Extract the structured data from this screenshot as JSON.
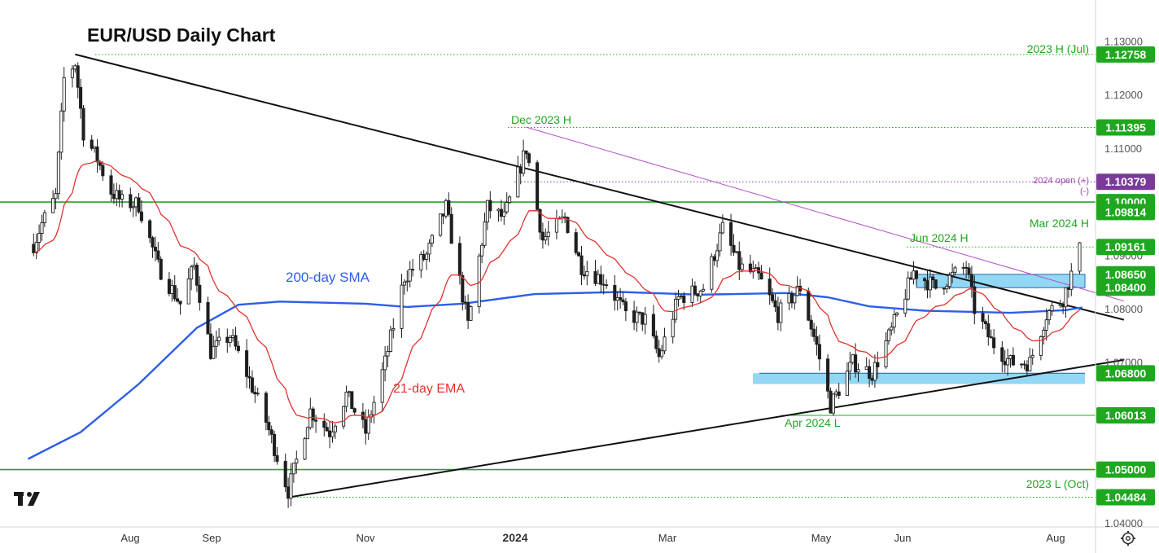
{
  "chart_data": {
    "type": "candlestick",
    "title": "EUR/USD Daily Chart",
    "ylim": [
      1.0395,
      1.1335
    ],
    "y_ticks": [
      "1.13000",
      "1.12000",
      "1.11000",
      "1.09000",
      "1.08000",
      "1.07000",
      "1.04000"
    ],
    "x_ticks": [
      "Aug",
      "Sep",
      "Nov",
      "2024",
      "Mar",
      "May",
      "Jun",
      "Aug"
    ],
    "price_levels": [
      {
        "value": 1.12758,
        "label": "1.12758",
        "color": "#1fa81f"
      },
      {
        "value": 1.11395,
        "label": "1.11395",
        "color": "#1fa81f"
      },
      {
        "value": 1.10379,
        "label": "1.10379",
        "color": "#7b3a99"
      },
      {
        "value": 1.1,
        "label": "1.10000",
        "color": "#1fa81f"
      },
      {
        "value": 1.09814,
        "label": "1.09814",
        "color": "#1fa81f"
      },
      {
        "value": 1.09161,
        "label": "1.09161",
        "color": "#1fa81f"
      },
      {
        "value": 1.0865,
        "label": "1.08650",
        "color": "#1fa81f"
      },
      {
        "value": 1.084,
        "label": "1.08400",
        "color": "#1fa81f"
      },
      {
        "value": 1.068,
        "label": "1.06800",
        "color": "#1fa81f"
      },
      {
        "value": 1.06013,
        "label": "1.06013",
        "color": "#1fa81f"
      },
      {
        "value": 1.05,
        "label": "1.05000",
        "color": "#1fa81f"
      },
      {
        "value": 1.04484,
        "label": "1.04484",
        "color": "#1fa81f"
      }
    ],
    "annotations": [
      {
        "text": "2023 H (Jul)",
        "color": "#1fa81f"
      },
      {
        "text": "Dec 2023 H",
        "color": "#1fa81f"
      },
      {
        "text": "2024 open (+)",
        "color": "#a347b5"
      },
      {
        "text": "(-)",
        "color": "#a347b5"
      },
      {
        "text": "Mar 2024 H",
        "color": "#1fa81f"
      },
      {
        "text": "Jun 2024 H",
        "color": "#1fa81f"
      },
      {
        "text": "Apr 2024 L",
        "color": "#1fa81f"
      },
      {
        "text": "2023 L (Oct)",
        "color": "#1fa81f"
      }
    ],
    "indicators": [
      {
        "name": "200-day SMA",
        "color": "#2d5ee8"
      },
      {
        "name": "21-day EMA",
        "color": "#e0322e"
      }
    ],
    "zones": [
      {
        "from": 1.084,
        "to": 1.0865,
        "color": "#7fd0f2"
      },
      {
        "from": 1.066,
        "to": 1.068,
        "color": "#7fd0f2"
      }
    ],
    "horizontal_lines": [
      1.1,
      1.05
    ],
    "trendlines": [
      {
        "name": "descending-trendline",
        "from": [
          "2023-07-18",
          1.1276
        ],
        "to": [
          "2024-07-31",
          1.078
        ]
      },
      {
        "name": "ascending-trendline",
        "from": [
          "2023-10-03",
          1.0448
        ],
        "to": [
          "2024-07-31",
          1.0705
        ]
      },
      {
        "name": "dec-high-trendline",
        "from": [
          "2023-12-28",
          1.114
        ],
        "to": [
          "2024-07-31",
          1.0815
        ]
      }
    ],
    "colors": {
      "up": "#1f1f1f",
      "down": "#1f1f1f",
      "level": "#1fa81f",
      "open_level": "#7b3a99"
    }
  },
  "branding": {
    "logo": "TV"
  }
}
